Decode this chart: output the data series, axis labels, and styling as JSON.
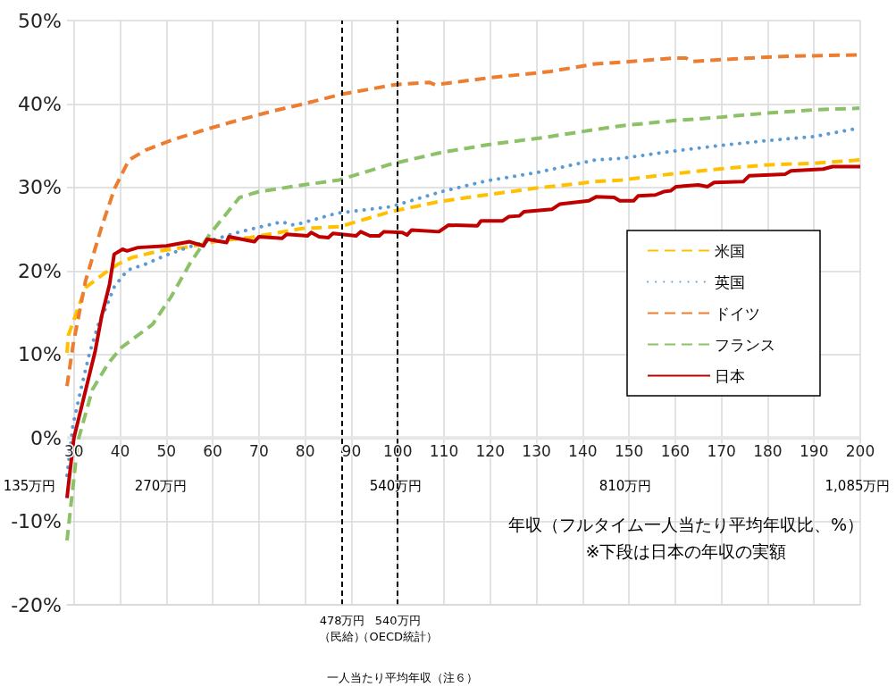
{
  "chart_data": {
    "type": "line",
    "xlabel": "年収（フルタイム一人当たり平均年収比、%）",
    "xlim": [
      28.5,
      200
    ],
    "xticks": [
      30,
      40,
      50,
      60,
      70,
      80,
      90,
      100,
      110,
      120,
      130,
      140,
      150,
      160,
      170,
      180,
      190,
      200
    ],
    "ylim": [
      -20,
      50
    ],
    "yticks": [
      {
        "value": -20,
        "label": "-20%"
      },
      {
        "value": -10,
        "label": "-10%"
      },
      {
        "value": 0,
        "label": "0%"
      },
      {
        "value": 10,
        "label": "10%"
      },
      {
        "value": 20,
        "label": "20%"
      },
      {
        "value": 30,
        "label": "30%"
      },
      {
        "value": 40,
        "label": "40%"
      },
      {
        "value": 50,
        "label": "50%"
      }
    ],
    "grid": true,
    "legend": "right",
    "series": [
      {
        "name": "米国",
        "color": "#ffc000",
        "line_style": "dashed",
        "x": [
          28.5,
          28.8,
          32.5,
          36.8,
          39.5,
          42.5,
          48.5,
          55,
          61.5,
          68,
          79.5,
          87.4,
          98.5,
          108.9,
          119,
          129.6,
          142.7,
          148.5,
          158.8,
          169.3,
          179.5,
          190,
          200
        ],
        "values": [
          10.2,
          12.3,
          18,
          19.8,
          20.8,
          21.6,
          22.4,
          22.9,
          23.6,
          24,
          25.1,
          25.3,
          27.1,
          28.3,
          29.1,
          29.9,
          30.7,
          30.9,
          31.6,
          32.2,
          32.7,
          32.9,
          33.3
        ]
      },
      {
        "name": "英国",
        "color": "#5b9bd5",
        "line_style": "dotted",
        "x": [
          28.5,
          29.8,
          31.5,
          33.3,
          35.4,
          37,
          38.8,
          41.6,
          45.4,
          49.5,
          55,
          60.5,
          65.3,
          72,
          75,
          77,
          79,
          86.7,
          98.5,
          109.5,
          119.2,
          130.2,
          142.7,
          148.5,
          158.8,
          169.3,
          179.5,
          190,
          198.6
        ],
        "values": [
          -4.5,
          1.6,
          5.8,
          10,
          13.8,
          15.7,
          18.2,
          20.1,
          20.8,
          21.8,
          22.9,
          23.8,
          24.6,
          25.5,
          25.9,
          25.5,
          25.7,
          26.9,
          27.7,
          29.5,
          30.8,
          31.8,
          33.3,
          33.5,
          34.3,
          35,
          35.6,
          36.1,
          37
        ]
      },
      {
        "name": "ドイツ",
        "color": "#ed7d31",
        "line_style": "dashed",
        "x": [
          28.5,
          29.8,
          32.5,
          36,
          38.8,
          41.9,
          45.6,
          51.8,
          58.8,
          65.8,
          72.6,
          79.5,
          88.1,
          99.2,
          106.8,
          108.1,
          119.2,
          133,
          142.7,
          148.5,
          159.5,
          162.3,
          163.6,
          172.6,
          183,
          200
        ],
        "values": [
          6.2,
          11.1,
          18.8,
          25.3,
          29.9,
          33.3,
          34.5,
          35.8,
          37,
          38.1,
          39.1,
          40,
          41.2,
          42.3,
          42.6,
          42.3,
          43.1,
          43.9,
          44.8,
          45,
          45.5,
          45.5,
          45.1,
          45.4,
          45.7,
          45.9
        ]
      },
      {
        "name": "フランス",
        "color": "#8cc168",
        "line_style": "dashed",
        "x": [
          28.5,
          30.9,
          34,
          37.4,
          40.2,
          47,
          51,
          55.3,
          59.5,
          65.8,
          70,
          79.5,
          87.4,
          98.5,
          109.5,
          119.2,
          131.7,
          143.4,
          148.5,
          159.5,
          169.3,
          179.5,
          190,
          199.8
        ],
        "values": [
          -12.3,
          -0.3,
          5.8,
          8.9,
          10.8,
          13.6,
          16.9,
          21.1,
          24.5,
          28.8,
          29.5,
          30.3,
          30.9,
          32.8,
          34.2,
          35.1,
          36,
          37,
          37.4,
          38,
          38.4,
          38.9,
          39.3,
          39.5
        ]
      },
      {
        "name": "日本",
        "color": "#c00000",
        "line_style": "solid",
        "x": [
          28.5,
          28.8,
          30,
          34.6,
          36,
          37.7,
          38.7,
          40.5,
          41.5,
          43.8,
          50,
          55,
          58,
          58.8,
          63,
          63.5,
          69,
          70,
          75,
          76,
          80.5,
          81.3,
          83,
          85,
          86,
          91,
          92,
          94,
          96,
          97,
          101,
          102,
          103,
          108.9,
          111,
          117.2,
          118,
          122.7,
          124,
          126.3,
          127.3,
          133.4,
          135,
          141.3,
          143,
          146.8,
          148,
          151,
          152,
          155.7,
          157.5,
          159,
          160.2,
          165,
          167,
          168.4,
          174.7,
          176,
          183.8,
          185,
          192,
          194,
          200
        ],
        "values": [
          -7.2,
          -5.7,
          0,
          10.4,
          14.6,
          18.4,
          22,
          22.6,
          22.4,
          22.8,
          23,
          23.5,
          23,
          23.8,
          23.4,
          24.1,
          23.5,
          24.1,
          23.9,
          24.4,
          24.2,
          24.6,
          24.1,
          24,
          24.5,
          24.2,
          24.7,
          24.2,
          24.2,
          24.7,
          24.6,
          24.3,
          24.9,
          24.7,
          25.5,
          25.4,
          26,
          26,
          26.5,
          26.6,
          27.1,
          27.4,
          28,
          28.4,
          28.9,
          28.8,
          28.4,
          28.4,
          29,
          29.1,
          29.5,
          29.6,
          30.1,
          30.3,
          30.1,
          30.6,
          30.7,
          31.4,
          31.6,
          32,
          32.2,
          32.5,
          32.5
        ]
      }
    ],
    "ref_lines": [
      {
        "axis": "x",
        "value": 88,
        "label": "478万円（民給）",
        "color": "#000000",
        "line_style": "dashed"
      },
      {
        "axis": "x",
        "value": 100,
        "label": "540万円（OECD統計）",
        "color": "#000000",
        "line_style": "dashed"
      }
    ],
    "annotations": [
      "135万円",
      "270万円",
      "540万円",
      "810万円",
      "1,085万円",
      "※下段は日本の年収の実額",
      "一人当たり平均年収（注６）"
    ]
  }
}
